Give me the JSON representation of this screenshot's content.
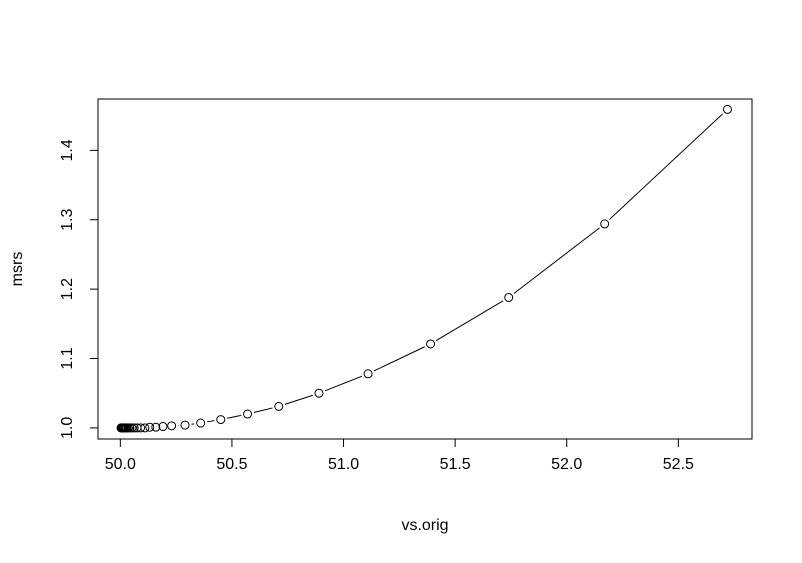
{
  "chart_data": {
    "type": "scatter",
    "title": "",
    "xlabel": "vs.orig",
    "ylabel": "msrs",
    "xlim": [
      49.9,
      52.83
    ],
    "ylim": [
      0.984,
      1.474
    ],
    "xticks": [
      50.0,
      50.5,
      51.0,
      51.5,
      52.0,
      52.5
    ],
    "xtick_labels": [
      "50.0",
      "50.5",
      "51.0",
      "51.5",
      "52.0",
      "52.5"
    ],
    "yticks": [
      1.0,
      1.1,
      1.2,
      1.3,
      1.4
    ],
    "ytick_labels": [
      "1.0",
      "1.1",
      "1.2",
      "1.3",
      "1.4"
    ],
    "grid": false,
    "legend": "none",
    "style": "both",
    "marker": "open-circle",
    "series": [
      {
        "x": [
          50.003,
          50.006,
          50.009,
          50.012,
          50.015,
          50.018,
          50.022,
          50.026,
          50.03,
          50.036,
          50.043,
          50.052,
          50.062,
          50.075,
          50.091,
          50.11,
          50.132,
          50.159,
          50.191,
          50.23,
          50.29,
          50.36,
          50.45,
          50.57,
          50.71,
          50.89,
          51.11,
          51.39,
          51.74,
          52.17,
          52.72
        ],
        "y": [
          1.0,
          1.0,
          1.0,
          1.0,
          1.0,
          1.0,
          1.0,
          1.0,
          1.0,
          1.0,
          1.0,
          1.0,
          1.0,
          1.0,
          1.0,
          1.0,
          1.001,
          1.001,
          1.002,
          1.003,
          1.004,
          1.007,
          1.012,
          1.02,
          1.031,
          1.05,
          1.078,
          1.121,
          1.188,
          1.294,
          1.459
        ]
      }
    ]
  }
}
